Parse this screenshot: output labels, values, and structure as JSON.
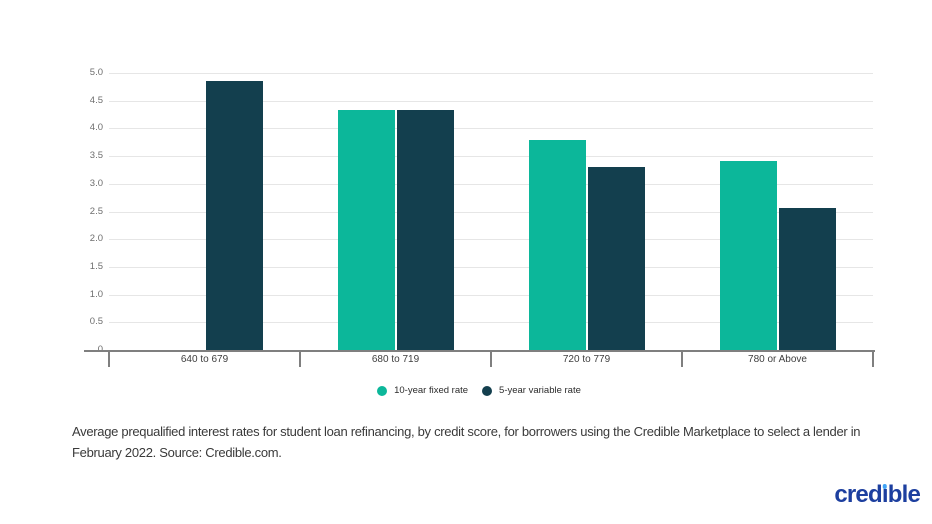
{
  "chart_data": {
    "type": "bar",
    "title": "",
    "categories": [
      "640 to 679",
      "680 to 719",
      "720 to 779",
      "780 or Above"
    ],
    "series": [
      {
        "name": "10-year fixed rate",
        "color": "#0cb79a",
        "values": [
          null,
          4.33,
          3.79,
          3.41
        ]
      },
      {
        "name": "5-year variable rate",
        "color": "#133f4e",
        "values": [
          4.86,
          4.33,
          3.31,
          2.56
        ]
      }
    ],
    "xlabel": "",
    "ylabel": "",
    "ylim": [
      0,
      5
    ],
    "ytick_step": 0.5,
    "grid": "horizontal",
    "legend_position": "bottom"
  },
  "caption": {
    "line1": "Average prequalified interest rates for student loan refinancing, by credit score, for borrowers using the Credible Marketplace to select a lender in",
    "line2": "February 2022. Source: Credible.com."
  },
  "logo": {
    "part1": "cred",
    "dotless_i": "ı",
    "part2": "ble",
    "full_text": "credible",
    "text_color": "#1d3f9f",
    "dot_color": "#41a3f5"
  }
}
